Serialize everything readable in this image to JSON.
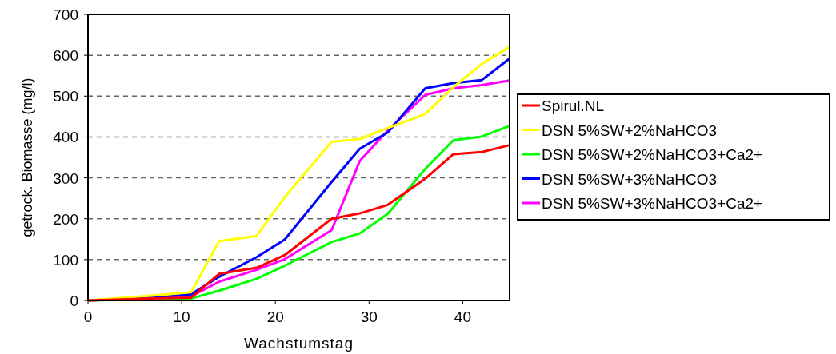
{
  "chart_data": {
    "type": "line",
    "xlabel": "Wachstumstag",
    "ylabel": "getrock. Biomasse (mg/l)",
    "x": [
      0,
      7,
      11,
      14,
      18,
      21,
      26,
      29,
      32,
      36,
      39,
      42,
      45
    ],
    "xlim": [
      0,
      45
    ],
    "xticks": [
      0,
      10,
      20,
      30,
      40
    ],
    "ylim": [
      0,
      700
    ],
    "yticks": [
      0,
      100,
      200,
      300,
      400,
      500,
      600,
      700
    ],
    "grid": "y",
    "legend": "right",
    "marker": "none",
    "line_style": "solid",
    "series": [
      {
        "name": "Spirul.NL",
        "color": "#ff0000",
        "values": [
          0,
          5,
          7,
          65,
          80,
          111,
          200,
          213,
          234,
          298,
          358,
          363,
          380
        ]
      },
      {
        "name": "DSN 5%SW+2%NaHCO3",
        "color": "#ffff00",
        "values": [
          0,
          12,
          20,
          145,
          158,
          253,
          388,
          395,
          422,
          456,
          522,
          578,
          621
        ]
      },
      {
        "name": "DSN 5%SW+2%NaHCO3+Ca2+",
        "color": "#00ff00",
        "x": [
          0,
          11,
          14,
          18,
          21,
          26,
          29,
          32,
          36,
          39,
          42,
          45
        ],
        "values": [
          0,
          5,
          24,
          53,
          85,
          143,
          164,
          212,
          322,
          392,
          401,
          427
        ]
      },
      {
        "name": "DSN 5%SW+3%NaHCO3",
        "color": "#0000ff",
        "values": [
          0,
          7,
          15,
          58,
          106,
          149,
          290,
          371,
          411,
          519,
          532,
          539,
          592
        ]
      },
      {
        "name": "DSN 5%SW+3%NaHCO3+Ca2+",
        "color": "#ff00ff",
        "values": [
          0,
          6,
          10,
          46,
          75,
          101,
          172,
          341,
          416,
          503,
          519,
          527,
          538
        ]
      }
    ]
  }
}
